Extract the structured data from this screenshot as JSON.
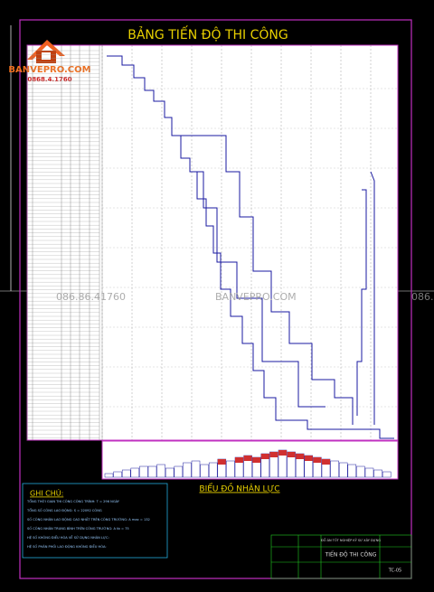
{
  "header": {
    "title": "BẢNG TIẾN ĐỘ THI CÔNG"
  },
  "logo": {
    "brand": "BANVEPRO.COM",
    "phone": "0868.4.1760"
  },
  "watermark": {
    "phone": "086.86.41760",
    "site": "BANVEPRO.COM",
    "phone_right": "086."
  },
  "chart_caption": "BIỂU ĐỒ NHÂN LỰC",
  "notes": {
    "heading": "GHI CHÚ:",
    "lines": [
      "TỔNG THỜI GIAN THI CÔNG CÔNG TRÌNH: T = 296 NGÀY",
      "TỔNG SỐ CÔNG LAO ĐỘNG: S = 22092 CÔNG",
      "SỐ CÔNG NHÂN LAO ĐỘNG CAO NHẤT TRÊN CÔNG TRƯỜNG: A max = 132",
      "SỐ CÔNG NHÂN TRUNG BÌNH TRÊN CÔNG TRƯỜNG: A tb = 75",
      "HỆ SỐ KHÔNG ĐIỀU HÒA VỀ SỬ DỤNG NHÂN LỰC:",
      "HỆ SỐ PHÂN PHỐI LAO ĐỘNG KHÔNG ĐIỀU HÒA:"
    ]
  },
  "title_block": {
    "project": "ĐỒ ÁN TỐT NGHIỆP KỸ SƯ XÂY DỰNG",
    "drawing_title": "TIẾN ĐỘ THI CÔNG",
    "sheet": "TC-05"
  }
}
